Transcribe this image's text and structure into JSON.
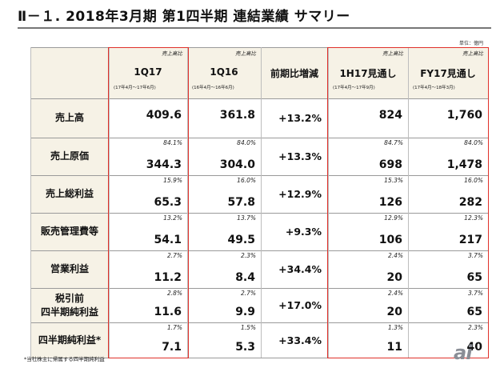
{
  "title": "Ⅱ－１. 2018年3月期 第1四半期 連結業績 サマリー",
  "unit": "単位：億円",
  "columns": [
    {
      "flag": "売上高比",
      "name": "1Q17",
      "period": "(17年4月～17年6月)"
    },
    {
      "flag": "売上高比",
      "name": "1Q16",
      "period": "(16年4月～16年6月)"
    },
    {
      "flag": "",
      "name": "前期比増減",
      "period": ""
    },
    {
      "flag": "売上高比",
      "name": "1H17見通し",
      "period": "(17年4月～17年9月)"
    },
    {
      "flag": "売上高比",
      "name": "FY17見通し",
      "period": "(17年4月～18年3月)"
    }
  ],
  "rows": [
    {
      "label": [
        "売上高"
      ],
      "q17": {
        "ratio": "",
        "value": "409.6"
      },
      "q16": {
        "ratio": "",
        "value": "361.8"
      },
      "change": "+13.2%",
      "h17": {
        "ratio": "",
        "value": "824"
      },
      "fy17": {
        "ratio": "",
        "value": "1,760"
      }
    },
    {
      "label": [
        "売上原価"
      ],
      "q17": {
        "ratio": "84.1%",
        "value": "344.3"
      },
      "q16": {
        "ratio": "84.0%",
        "value": "304.0"
      },
      "change": "+13.3%",
      "h17": {
        "ratio": "84.7%",
        "value": "698"
      },
      "fy17": {
        "ratio": "84.0%",
        "value": "1,478"
      }
    },
    {
      "label": [
        "売上総利益"
      ],
      "q17": {
        "ratio": "15.9%",
        "value": "65.3"
      },
      "q16": {
        "ratio": "16.0%",
        "value": "57.8"
      },
      "change": "+12.9%",
      "h17": {
        "ratio": "15.3%",
        "value": "126"
      },
      "fy17": {
        "ratio": "16.0%",
        "value": "282"
      }
    },
    {
      "label": [
        "販売管理費等"
      ],
      "q17": {
        "ratio": "13.2%",
        "value": "54.1"
      },
      "q16": {
        "ratio": "13.7%",
        "value": "49.5"
      },
      "change": "+9.3%",
      "h17": {
        "ratio": "12.9%",
        "value": "106"
      },
      "fy17": {
        "ratio": "12.3%",
        "value": "217"
      }
    },
    {
      "label": [
        "営業利益"
      ],
      "q17": {
        "ratio": "2.7%",
        "value": "11.2"
      },
      "q16": {
        "ratio": "2.3%",
        "value": "8.4"
      },
      "change": "+34.4%",
      "h17": {
        "ratio": "2.4%",
        "value": "20"
      },
      "fy17": {
        "ratio": "3.7%",
        "value": "65"
      }
    },
    {
      "label": [
        "税引前",
        "四半期純利益"
      ],
      "q17": {
        "ratio": "2.8%",
        "value": "11.6"
      },
      "q16": {
        "ratio": "2.7%",
        "value": "9.9"
      },
      "change": "+17.0%",
      "h17": {
        "ratio": "2.4%",
        "value": "20"
      },
      "fy17": {
        "ratio": "3.7%",
        "value": "65"
      }
    },
    {
      "label": [
        "四半期純利益*"
      ],
      "q17": {
        "ratio": "1.7%",
        "value": "7.1"
      },
      "q16": {
        "ratio": "1.5%",
        "value": "5.3"
      },
      "change": "+33.4%",
      "h17": {
        "ratio": "1.3%",
        "value": "11"
      },
      "fy17": {
        "ratio": "2.3%",
        "value": "40"
      }
    }
  ],
  "footnote": "*当社株主に帰属する四半期純利益",
  "logo": "ai",
  "colors": {
    "accent_red": "#e0302a",
    "header_bg": "#f6f2e6"
  }
}
